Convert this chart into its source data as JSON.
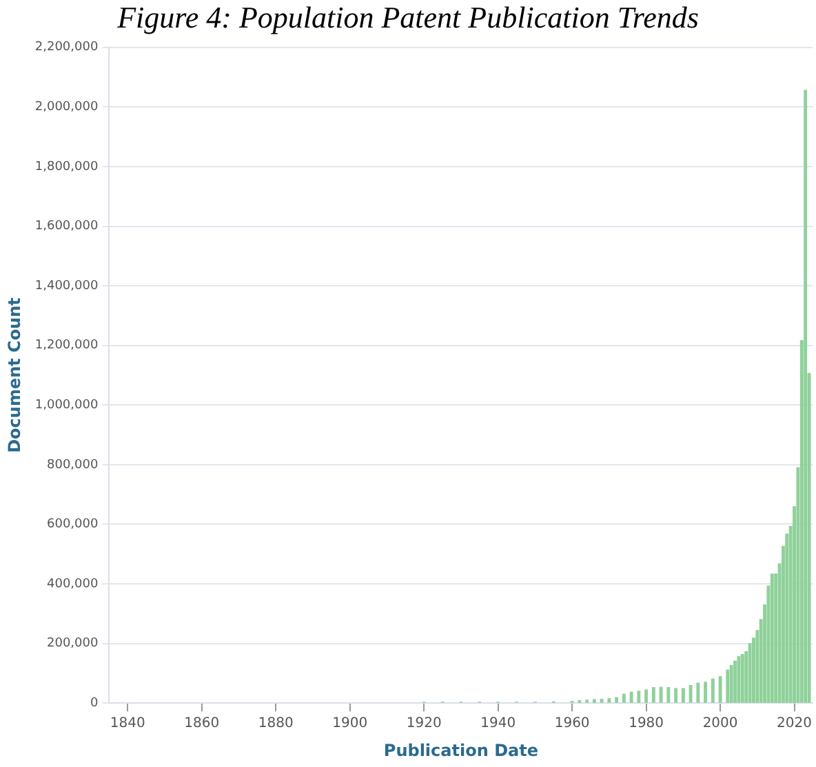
{
  "chart_data": {
    "type": "bar",
    "title": "Figure 4: Population Patent Publication Trends",
    "xlabel": "Publication Date",
    "ylabel": "Document Count",
    "x": [
      1920,
      1925,
      1930,
      1935,
      1940,
      1945,
      1950,
      1955,
      1960,
      1962,
      1964,
      1966,
      1968,
      1970,
      1972,
      1974,
      1976,
      1978,
      1980,
      1982,
      1984,
      1986,
      1988,
      1990,
      1992,
      1994,
      1996,
      1998,
      2000,
      2002,
      2003,
      2004,
      2005,
      2006,
      2007,
      2008,
      2009,
      2010,
      2011,
      2012,
      2013,
      2014,
      2015,
      2016,
      2017,
      2018,
      2019,
      2020,
      2021,
      2022,
      2023,
      2024
    ],
    "values": [
      3000,
      3000,
      3000,
      3000,
      3000,
      3000,
      3000,
      4000,
      6000,
      8000,
      10000,
      12000,
      13000,
      15000,
      18000,
      30000,
      37000,
      40000,
      44000,
      52000,
      53000,
      52000,
      49000,
      49000,
      59000,
      67000,
      70000,
      81000,
      89000,
      111000,
      126000,
      141000,
      156000,
      163000,
      173000,
      200000,
      218000,
      244000,
      281000,
      329000,
      393000,
      433000,
      433000,
      467000,
      526000,
      567000,
      593000,
      659000,
      790000,
      1216000,
      2056000,
      1106000
    ],
    "color": "#8fd19a",
    "xlim": [
      1835,
      2025
    ],
    "xticks": [
      1840,
      1860,
      1880,
      1900,
      1920,
      1940,
      1960,
      1980,
      2000,
      2020
    ],
    "ylim": [
      0,
      2200000
    ],
    "yticks": [
      0,
      {
        "value": 200000,
        "label": "200,000"
      },
      {
        "value": 400000,
        "label": "400,000"
      },
      {
        "value": 600000,
        "label": "600,000"
      },
      {
        "value": 800000,
        "label": "800,000"
      },
      {
        "value": 1000000,
        "label": "1,000,000"
      },
      {
        "value": 1200000,
        "label": "1,200,000"
      },
      {
        "value": 1400000,
        "label": "1,400,000"
      },
      {
        "value": 1600000,
        "label": "1,600,000"
      },
      {
        "value": 1800000,
        "label": "1,800,000"
      },
      {
        "value": 2000000,
        "label": "2,000,000"
      },
      {
        "value": 2200000,
        "label": "2,200,000"
      }
    ],
    "grid": "y"
  }
}
